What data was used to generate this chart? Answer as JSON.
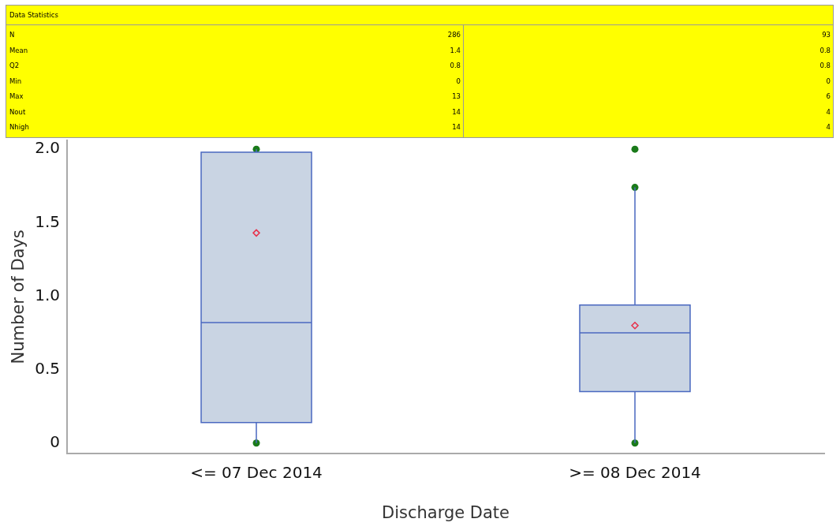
{
  "chart_data": {
    "type": "box",
    "xlabel": "Discharge Date",
    "ylabel": "Number of Days",
    "categories": [
      "<= 07 Dec 2014",
      ">= 08 Dec 2014"
    ],
    "color": "#c9d4e3",
    "boxes": [
      {
        "low": 0,
        "q1": 0.14,
        "median": 0.82,
        "q3": 1.98,
        "high": 2.0,
        "mean": 1.43
      },
      {
        "low": 0,
        "q1": 0.35,
        "median": 0.75,
        "q3": 0.94,
        "high": 1.74,
        "mean": 0.8
      }
    ],
    "series": [
      {
        "type": "scatter",
        "color": "#1a7a1a",
        "x": [
          "<= 07 Dec 2014",
          "<= 07 Dec 2014",
          ">= 08 Dec 2014",
          ">= 08 Dec 2014",
          ">= 08 Dec 2014"
        ],
        "values": [
          2.0,
          0,
          2.0,
          1.74,
          0
        ]
      }
    ],
    "marker": "circle",
    "ylim": [
      -0.07,
      2.06
    ],
    "yticks": [
      {
        "value": 0,
        "label": "0"
      },
      {
        "value": 0.5,
        "label": "0.5"
      },
      {
        "value": 1,
        "label": "1.0"
      },
      {
        "value": 1.5,
        "label": "1.5"
      },
      {
        "value": 2,
        "label": "2.0"
      }
    ],
    "grid": false,
    "annotations": [
      "Data Statistics",
      "N",
      "286",
      "93",
      "Mean",
      "1.4",
      "0.8",
      "Q2",
      "0.8",
      "0.8",
      "Min",
      "0",
      "0",
      "Max",
      "13",
      "6",
      "Nout",
      "14",
      "4",
      "Nhigh",
      "14",
      "4"
    ]
  }
}
